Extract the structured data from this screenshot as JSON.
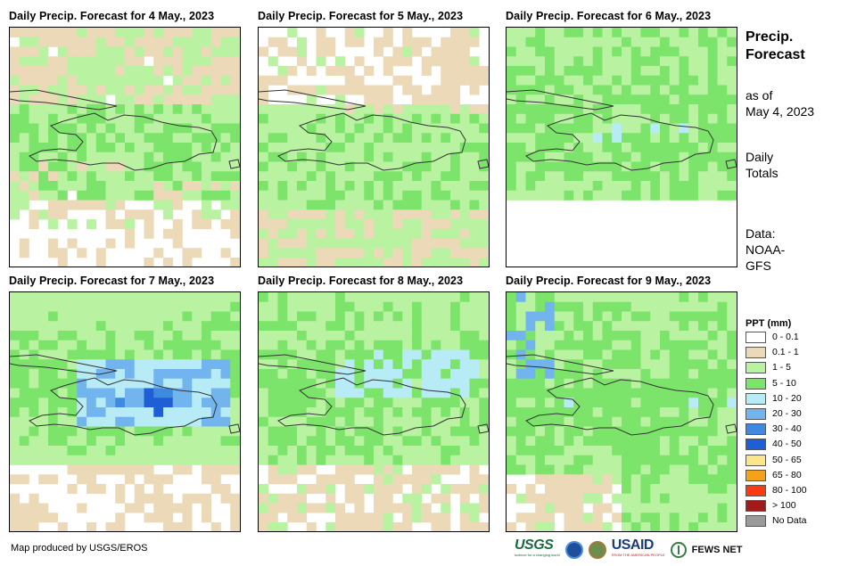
{
  "panels": [
    {
      "title": "Daily Precip. Forecast for 4 May., 2023"
    },
    {
      "title": "Daily Precip. Forecast for 5 May., 2023"
    },
    {
      "title": "Daily Precip. Forecast for 6 May., 2023"
    },
    {
      "title": "Daily Precip. Forecast for 7 May., 2023"
    },
    {
      "title": "Daily Precip. Forecast for 8 May., 2023"
    },
    {
      "title": "Daily Precip. Forecast for 9 May., 2023"
    }
  ],
  "sidebar": {
    "title_line1": "Precip.",
    "title_line2": "Forecast",
    "asof_line1": "as of",
    "asof_line2": "May 4, 2023",
    "totals_line1": "Daily",
    "totals_line2": "Totals",
    "data_line1": "Data:",
    "data_line2": "NOAA-",
    "data_line3": "GFS"
  },
  "legend": {
    "title": "PPT (mm)",
    "items": [
      {
        "label": "0 - 0.1",
        "color": "#ffffff"
      },
      {
        "label": "0.1 - 1",
        "color": "#ecd9b8"
      },
      {
        "label": "1 - 5",
        "color": "#b9f2a1"
      },
      {
        "label": "5 - 10",
        "color": "#7ce46b"
      },
      {
        "label": "10 - 20",
        "color": "#b7ebf5"
      },
      {
        "label": "20 - 30",
        "color": "#72b4ee"
      },
      {
        "label": "30 - 40",
        "color": "#3d8ae0"
      },
      {
        "label": "40 - 50",
        "color": "#1f5fd6"
      },
      {
        "label": "50 - 65",
        "color": "#fde58a"
      },
      {
        "label": "65 - 80",
        "color": "#f6a11a"
      },
      {
        "label": "80 - 100",
        "color": "#ff3a10"
      },
      {
        "label": "> 100",
        "color": "#a11a1a"
      },
      {
        "label": "No Data",
        "color": "#9a9a9a"
      }
    ]
  },
  "footer": {
    "credit": "Map produced by USGS/EROS",
    "logo_usgs": "USGS",
    "logo_usgs_tagline": "science for a changing world",
    "logo_usaid": "USAID",
    "logo_usaid_tagline": "FROM THE AMERICAN PEOPLE",
    "logo_fews": "FEWS NET"
  }
}
